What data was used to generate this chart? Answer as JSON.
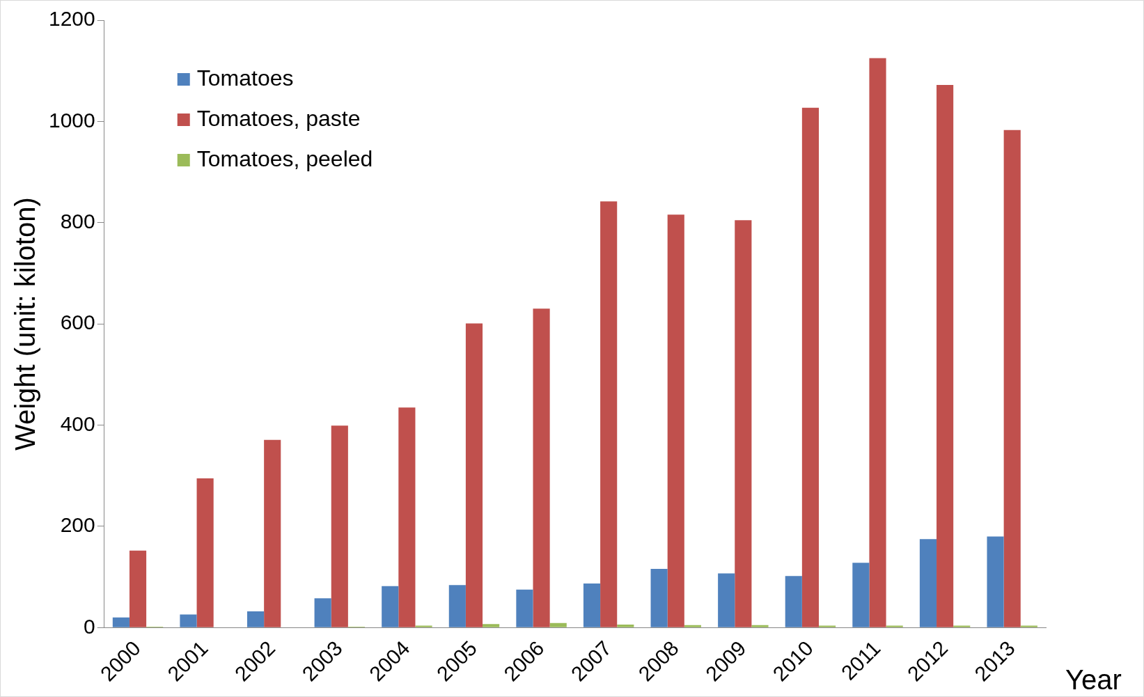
{
  "chart_data": {
    "type": "bar",
    "xlabel": "Year",
    "ylabel": "Weight (unit: kiloton)",
    "categories": [
      "2000",
      "2001",
      "2002",
      "2003",
      "2004",
      "2005",
      "2006",
      "2007",
      "2008",
      "2009",
      "2010",
      "2011",
      "2012",
      "2013"
    ],
    "series": [
      {
        "name": "Tomatoes",
        "color": "#4f81bd",
        "values": [
          20,
          26,
          32,
          58,
          82,
          84,
          75,
          87,
          116,
          107,
          102,
          128,
          175,
          180
        ]
      },
      {
        "name": "Tomatoes, paste",
        "color": "#c0504d",
        "values": [
          152,
          295,
          371,
          399,
          435,
          601,
          630,
          842,
          816,
          805,
          1027,
          1125,
          1072,
          983
        ]
      },
      {
        "name": "Tomatoes, peeled",
        "color": "#9bbb59",
        "values": [
          2,
          0,
          0,
          2,
          4,
          7,
          9,
          6,
          5,
          5,
          4,
          4,
          4,
          4
        ]
      }
    ],
    "ylim": [
      0,
      1200
    ],
    "yticks": [
      0,
      200,
      400,
      600,
      800,
      1000,
      1200
    ],
    "grid": false,
    "legend": "top left"
  }
}
